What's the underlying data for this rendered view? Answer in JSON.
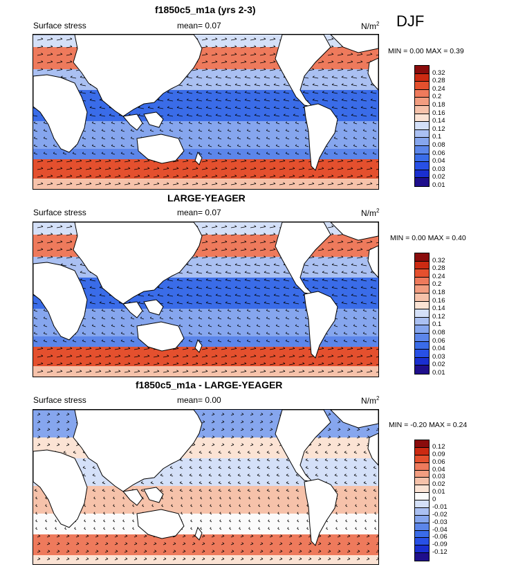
{
  "season": "DJF",
  "panels": [
    {
      "title": "f1850c5_m1a (yrs 2-3)",
      "left_label": "Surface stress",
      "mean": "mean=   0.07",
      "units": "N/m",
      "units_sup": "2",
      "min_max": "MIN =   0.00 MAX =   0.39",
      "colorbar_labels": [
        "0.32",
        "0.28",
        "0.24",
        "0.2",
        "0.18",
        "0.16",
        "0.14",
        "0.12",
        "0.1",
        "0.08",
        "0.06",
        "0.04",
        "0.03",
        "0.02",
        "0.01"
      ]
    },
    {
      "title": "LARGE-YEAGER",
      "left_label": "Surface stress",
      "mean": "mean=   0.07",
      "units": "N/m",
      "units_sup": "2",
      "min_max": "MIN =   0.00 MAX =   0.40",
      "colorbar_labels": [
        "0.32",
        "0.28",
        "0.24",
        "0.2",
        "0.18",
        "0.16",
        "0.14",
        "0.12",
        "0.1",
        "0.08",
        "0.06",
        "0.04",
        "0.03",
        "0.02",
        "0.01"
      ]
    },
    {
      "title": "f1850c5_m1a - LARGE-YEAGER",
      "left_label": "Surface stress",
      "mean": "mean=   0.00",
      "units": "N/m",
      "units_sup": "2",
      "min_max": "MIN =  -0.20 MAX =   0.24",
      "colorbar_labels": [
        "0.12",
        "0.09",
        "0.06",
        "0.04",
        "0.03",
        "0.02",
        "0.01",
        "0",
        "-0.01",
        "-0.02",
        "-0.03",
        "-0.04",
        "-0.06",
        "-0.09",
        "-0.12"
      ]
    }
  ],
  "chart_data": [
    {
      "type": "heatmap",
      "title": "f1850c5_m1a (yrs 2-3)",
      "variable": "Surface stress",
      "units": "N/m2",
      "mean": 0.07,
      "min": 0.0,
      "max": 0.39,
      "colorbar_levels": [
        0.01,
        0.02,
        0.03,
        0.04,
        0.06,
        0.08,
        0.1,
        0.12,
        0.14,
        0.16,
        0.18,
        0.2,
        0.24,
        0.28,
        0.32
      ],
      "colors": [
        "#1f0f8c",
        "#1a2fd0",
        "#2850e6",
        "#3a6ce8",
        "#5c86ea",
        "#86a6ee",
        "#aac0f2",
        "#d4e0f8",
        "#fbe3d4",
        "#f6c2aa",
        "#f29d80",
        "#ee7a5c",
        "#e4502e",
        "#cc2a12",
        "#8a0c0c"
      ]
    },
    {
      "type": "heatmap",
      "title": "LARGE-YEAGER",
      "variable": "Surface stress",
      "units": "N/m2",
      "mean": 0.07,
      "min": 0.0,
      "max": 0.4,
      "colorbar_levels": [
        0.01,
        0.02,
        0.03,
        0.04,
        0.06,
        0.08,
        0.1,
        0.12,
        0.14,
        0.16,
        0.18,
        0.2,
        0.24,
        0.28,
        0.32
      ],
      "colors": [
        "#1f0f8c",
        "#1a2fd0",
        "#2850e6",
        "#3a6ce8",
        "#5c86ea",
        "#86a6ee",
        "#aac0f2",
        "#d4e0f8",
        "#fbe3d4",
        "#f6c2aa",
        "#f29d80",
        "#ee7a5c",
        "#e4502e",
        "#cc2a12",
        "#8a0c0c"
      ]
    },
    {
      "type": "heatmap",
      "title": "f1850c5_m1a - LARGE-YEAGER",
      "variable": "Surface stress",
      "units": "N/m2",
      "mean": 0.0,
      "min": -0.2,
      "max": 0.24,
      "colorbar_levels": [
        -0.12,
        -0.09,
        -0.06,
        -0.04,
        -0.03,
        -0.02,
        -0.01,
        0,
        0.01,
        0.02,
        0.03,
        0.04,
        0.06,
        0.09,
        0.12
      ],
      "colors": [
        "#1f0f8c",
        "#1a2fd0",
        "#2850e6",
        "#3a6ce8",
        "#5c86ea",
        "#86a6ee",
        "#aac0f2",
        "#d4e0f8",
        "#fbfbfb",
        "#fbe3d4",
        "#f6c2aa",
        "#f29d80",
        "#ee7a5c",
        "#e4502e",
        "#cc2a12",
        "#8a0c0c"
      ]
    }
  ]
}
